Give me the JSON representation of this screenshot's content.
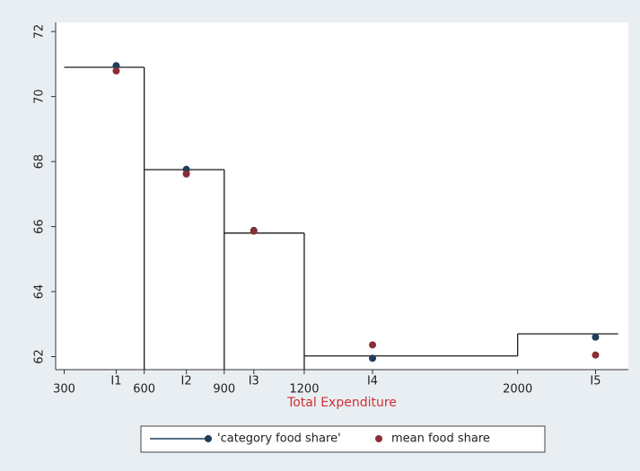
{
  "chart_data": {
    "type": "step",
    "x_label": "Total Expenditure",
    "xlim": [
      268,
      2415
    ],
    "ylim": [
      61.6,
      72.28
    ],
    "xticks": [
      300,
      {
        "value": 495,
        "label": "I1"
      },
      600,
      {
        "value": 758,
        "label": "I2"
      },
      900,
      {
        "value": 1011,
        "label": "I3"
      },
      1200,
      {
        "value": 1456,
        "label": "I4"
      },
      2000,
      {
        "value": 2292,
        "label": "I5"
      }
    ],
    "yticks": [
      62,
      64,
      66,
      68,
      70,
      72
    ],
    "step": {
      "edges": [
        300,
        600,
        900,
        1200,
        2000,
        2377
      ],
      "values": [
        70.9,
        67.75,
        65.8,
        62.02,
        62.7
      ],
      "color": "#1a1a1a"
    },
    "x": [
      495,
      758,
      1011,
      1456,
      2292
    ],
    "series": [
      {
        "name": "'category food share'",
        "color": "#1f3d5a",
        "values": [
          70.95,
          67.76,
          65.88,
          61.95,
          62.6
        ]
      },
      {
        "name": "mean food share",
        "color": "#8b2e35",
        "values": [
          70.79,
          67.62,
          65.86,
          62.36,
          62.05
        ]
      }
    ],
    "legend": "bottom"
  }
}
